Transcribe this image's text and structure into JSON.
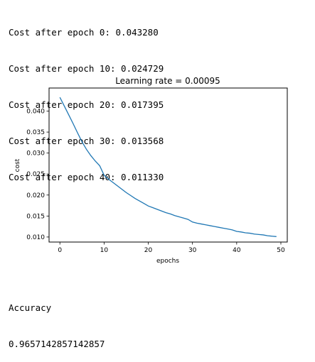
{
  "output_log": [
    "Cost after epoch 0: 0.043280",
    "Cost after epoch 10: 0.024729",
    "Cost after epoch 20: 0.017395",
    "Cost after epoch 30: 0.013568",
    "Cost after epoch 40: 0.011330"
  ],
  "chart_data": {
    "type": "line",
    "title": "Learning rate = 0.00095",
    "xlabel": "epochs",
    "ylabel": "cost",
    "xlim": [
      -2.45,
      51.45
    ],
    "ylim": [
      0.0088,
      0.0455
    ],
    "xticks": [
      0,
      10,
      20,
      30,
      40,
      50
    ],
    "yticks": [
      0.01,
      0.015,
      0.02,
      0.025,
      0.03,
      0.035,
      0.04
    ],
    "ytick_labels": [
      "0.010",
      "0.015",
      "0.020",
      "0.025",
      "0.030",
      "0.035",
      "0.040"
    ],
    "grid": false,
    "color": "#1f77b4",
    "x": [
      0,
      1,
      2,
      3,
      4,
      5,
      6,
      7,
      8,
      9,
      10,
      11,
      12,
      13,
      14,
      15,
      16,
      17,
      18,
      19,
      20,
      21,
      22,
      23,
      24,
      25,
      26,
      27,
      28,
      29,
      30,
      31,
      32,
      33,
      34,
      35,
      36,
      37,
      38,
      39,
      40,
      41,
      42,
      43,
      44,
      45,
      46,
      47,
      48,
      49
    ],
    "values": [
      0.04328,
      0.0412,
      0.0391,
      0.037,
      0.0348,
      0.0327,
      0.0309,
      0.0294,
      0.0281,
      0.027,
      0.024729,
      0.0238,
      0.023,
      0.0222,
      0.0214,
      0.0206,
      0.0199,
      0.0192,
      0.0186,
      0.018,
      0.017395,
      0.017,
      0.0166,
      0.0162,
      0.0158,
      0.0155,
      0.0151,
      0.0148,
      0.0145,
      0.0142,
      0.013568,
      0.0133,
      0.0131,
      0.0129,
      0.0127,
      0.0125,
      0.0123,
      0.0121,
      0.0119,
      0.0117,
      0.01133,
      0.0112,
      0.011,
      0.0109,
      0.0107,
      0.0106,
      0.0105,
      0.0103,
      0.0102,
      0.0101
    ]
  },
  "accuracy": {
    "label": "Accuracy",
    "value": "0.9657142857142857"
  }
}
